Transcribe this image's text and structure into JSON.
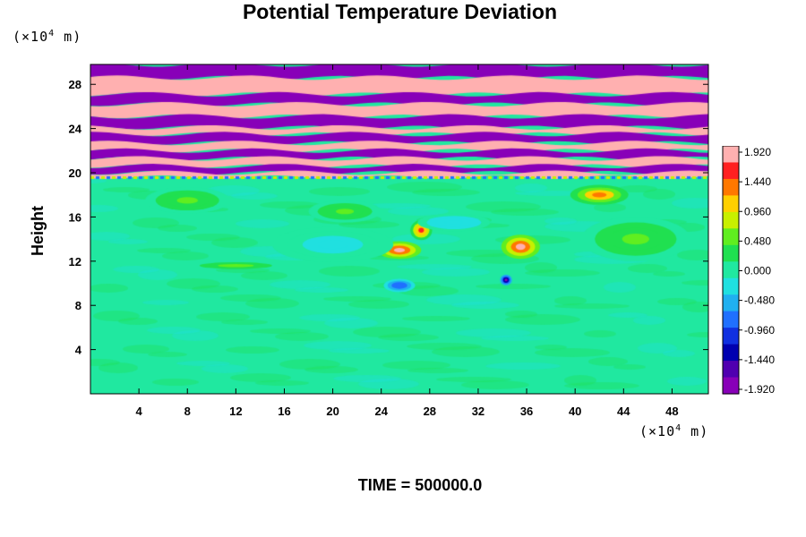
{
  "chart_data": {
    "type": "heatmap",
    "title": "Potential Temperature Deviation",
    "ylabel": "Height",
    "xlabel": "",
    "y_unit_prefix": "(×10",
    "y_unit_exp": "4",
    "y_unit_suffix": " m)",
    "x_unit_prefix": "(×10",
    "x_unit_exp": "4",
    "x_unit_suffix": " m)",
    "xlim": [
      0,
      51
    ],
    "ylim": [
      0,
      29.8
    ],
    "x_ticks": [
      "4",
      "8",
      "12",
      "16",
      "20",
      "24",
      "28",
      "32",
      "36",
      "40",
      "44",
      "48"
    ],
    "x_tick_values": [
      4,
      8,
      12,
      16,
      20,
      24,
      28,
      32,
      36,
      40,
      44,
      48
    ],
    "y_ticks": [
      "4",
      "8",
      "12",
      "16",
      "20",
      "24",
      "28"
    ],
    "y_tick_values": [
      4,
      8,
      12,
      16,
      20,
      24,
      28
    ],
    "colorbar_labels": [
      "1.920",
      "1.440",
      "0.960",
      "0.480",
      "0.000",
      "-0.480",
      "-0.960",
      "-1.440",
      "-1.920"
    ],
    "colorbar_values": [
      1.92,
      1.44,
      0.96,
      0.48,
      0.0,
      -0.48,
      -0.96,
      -1.44,
      -1.92
    ],
    "colorbar_colors": [
      "#ffb0b0",
      "#ff2020",
      "#ff7800",
      "#ffd000",
      "#c8f000",
      "#60ee20",
      "#20e050",
      "#20e8a0",
      "#20e0e0",
      "#20b0f0",
      "#2070ff",
      "#1030e0",
      "#0000b0",
      "#5000b0",
      "#8800b8"
    ],
    "background_value": 0.1,
    "upper_layer_base": 19.6,
    "upper_layer_bands": [
      {
        "from": 28.6,
        "to": 29.8,
        "value": -1.92
      },
      {
        "from": 27.1,
        "to": 28.6,
        "value": 1.92
      },
      {
        "from": 26.2,
        "to": 27.1,
        "value": -1.92
      },
      {
        "from": 25.1,
        "to": 26.2,
        "value": 1.92
      },
      {
        "from": 24.1,
        "to": 25.1,
        "value": -1.92
      },
      {
        "from": 23.5,
        "to": 24.1,
        "value": 1.92
      },
      {
        "from": 22.7,
        "to": 23.5,
        "value": -1.92
      },
      {
        "from": 22.0,
        "to": 22.7,
        "value": 1.92
      },
      {
        "from": 21.3,
        "to": 22.0,
        "value": -1.92
      },
      {
        "from": 20.6,
        "to": 21.3,
        "value": 1.92
      },
      {
        "from": 20.0,
        "to": 20.6,
        "value": -1.92
      },
      {
        "from": 19.6,
        "to": 20.0,
        "value": 1.92
      }
    ],
    "anomalies": [
      {
        "x": 25.5,
        "y": 13.0,
        "rx": 1.8,
        "ry": 0.8,
        "value": 1.92
      },
      {
        "x": 27.3,
        "y": 14.8,
        "rx": 0.9,
        "ry": 0.9,
        "value": 1.6
      },
      {
        "x": 35.5,
        "y": 13.3,
        "rx": 1.6,
        "ry": 1.1,
        "value": 1.92
      },
      {
        "x": 42.0,
        "y": 18.0,
        "rx": 2.4,
        "ry": 0.9,
        "value": 1.44
      },
      {
        "x": 34.3,
        "y": 10.3,
        "rx": 0.5,
        "ry": 0.5,
        "value": -1.92
      },
      {
        "x": 25.5,
        "y": 9.8,
        "rx": 1.3,
        "ry": 0.6,
        "value": -0.96
      },
      {
        "x": 12.0,
        "y": 11.6,
        "rx": 3.0,
        "ry": 0.3,
        "value": 0.72
      },
      {
        "x": 8.0,
        "y": 17.5,
        "rx": 3.5,
        "ry": 1.2,
        "value": 0.5
      },
      {
        "x": 21.0,
        "y": 16.5,
        "rx": 3.0,
        "ry": 1.0,
        "value": 0.5
      },
      {
        "x": 30.0,
        "y": 15.5,
        "rx": 3.0,
        "ry": 0.8,
        "value": -0.3
      },
      {
        "x": 20.0,
        "y": 13.5,
        "rx": 5.0,
        "ry": 1.6,
        "value": -0.2
      },
      {
        "x": 45.0,
        "y": 14.0,
        "rx": 4.5,
        "ry": 2.0,
        "value": 0.45
      }
    ],
    "time_label": "TIME = 500000.0"
  }
}
